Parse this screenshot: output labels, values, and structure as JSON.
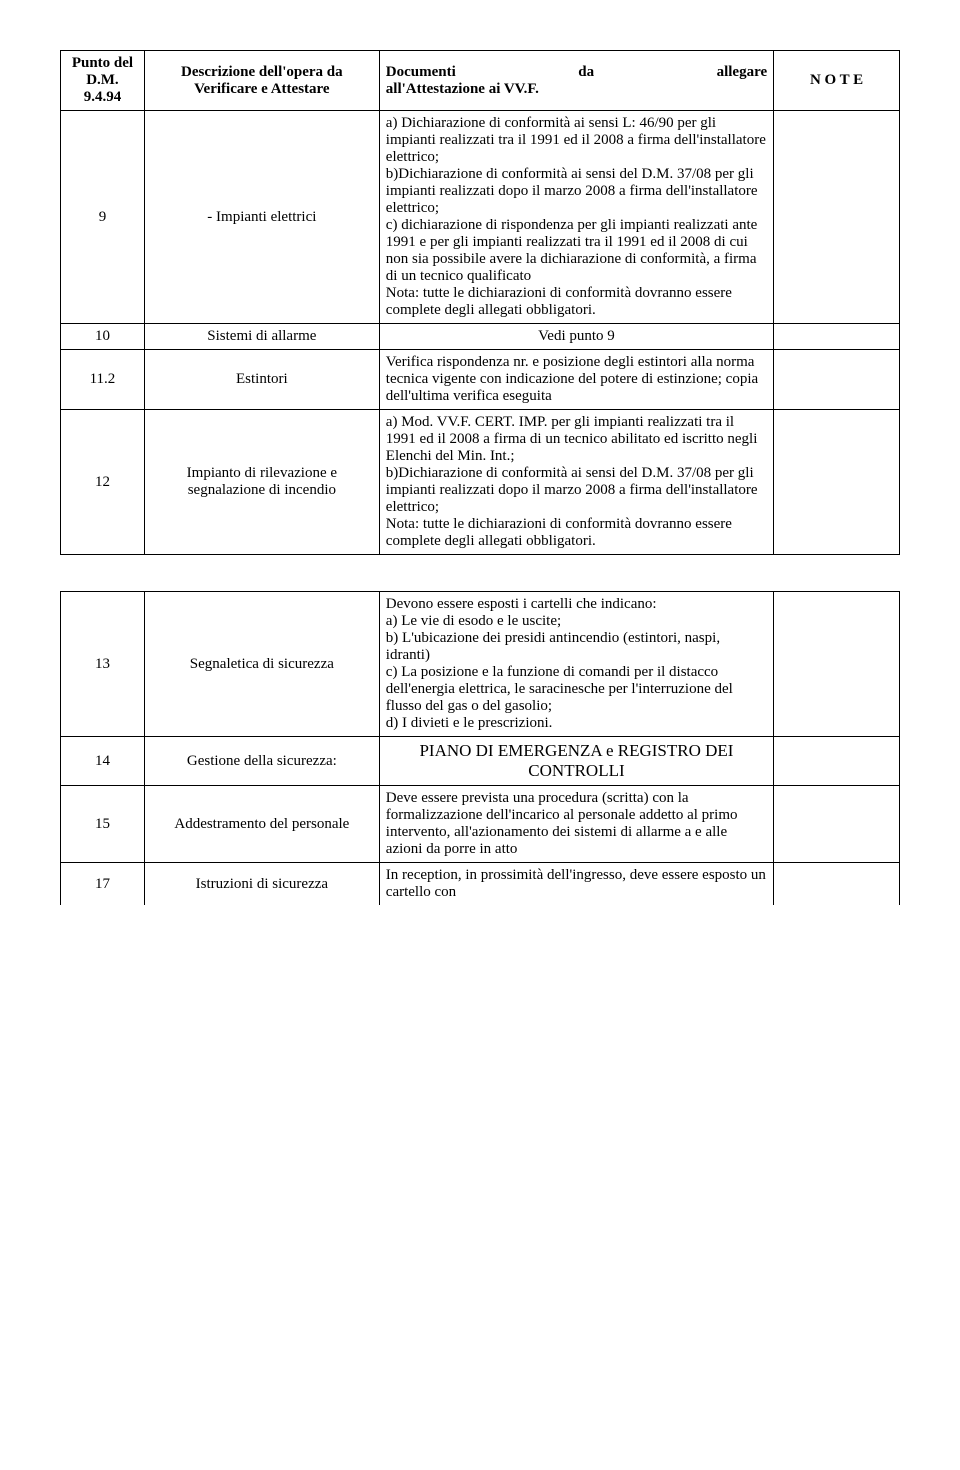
{
  "header": {
    "col1": "Punto del D.M. 9.4.94",
    "col2": "Descrizione dell'opera da Verificare e Attestare",
    "col3a": "Documenti",
    "col3b": "da",
    "col3c": "allegare",
    "col3d": "all'Attestazione ai VV.F.",
    "col4": "N O T E"
  },
  "rows": [
    {
      "num": "9",
      "desc": "- Impianti elettrici",
      "doc": "a) Dichiarazione di conformità ai sensi L: 46/90 per gli impianti realizzati tra il 1991 ed il 2008 a firma dell'installatore elettrico;\nb)Dichiarazione di conformità ai sensi del D.M. 37/08 per gli impianti realizzati dopo il marzo 2008 a firma dell'installatore elettrico;\nc) dichiarazione di rispondenza per gli impianti realizzati ante 1991 e per gli impianti realizzati tra il 1991 ed il 2008 di cui non sia possibile avere la dichiarazione di conformità, a firma di un tecnico qualificato\nNota: tutte le dichiarazioni di conformità dovranno essere complete degli allegati obbligatori."
    },
    {
      "num": "10",
      "desc": "Sistemi di allarme",
      "doc": "Vedi punto 9",
      "docCenter": true
    },
    {
      "num": "11.2",
      "desc": "Estintori",
      "doc": "Verifica rispondenza nr. e posizione degli estintori alla norma tecnica vigente con indicazione del potere di estinzione; copia dell'ultima verifica eseguita"
    },
    {
      "num": "12",
      "desc": "Impianto di rilevazione e segnalazione di incendio",
      "doc": "a) Mod. VV.F. CERT. IMP. per gli impianti realizzati tra il 1991 ed il 2008 a firma di un tecnico abilitato ed iscritto negli Elenchi del Min. Int.;\nb)Dichiarazione di conformità ai sensi del D.M. 37/08 per gli impianti realizzati dopo il marzo 2008 a firma dell'installatore elettrico;\nNota: tutte le dichiarazioni di conformità dovranno essere complete degli allegati obbligatori."
    }
  ],
  "rows2": [
    {
      "num": "13",
      "desc": "Segnaletica di sicurezza",
      "doc": "Devono essere esposti i cartelli che indicano:\na) Le vie di esodo e le uscite;\nb) L'ubicazione dei presidi antincendio (estintori, naspi, idranti)\nc) La posizione e la funzione di comandi per il distacco dell'energia elettrica, le saracinesche per l'interruzione del flusso del gas o del gasolio;\nd) I divieti e le prescrizioni."
    },
    {
      "num": "14",
      "desc": "Gestione della sicurezza:",
      "doc": "PIANO DI EMERGENZA e REGISTRO DEI CONTROLLI",
      "piano": true
    },
    {
      "num": "15",
      "desc": "Addestramento del personale",
      "doc": "Deve essere prevista una procedura (scritta) con la formalizzazione dell'incarico al personale addetto al primo intervento, all'azionamento dei sistemi di allarme a e alle azioni da porre in atto"
    },
    {
      "num": "17",
      "desc": "Istruzioni di sicurezza",
      "doc": "In reception, in prossimità dell'ingresso, deve essere esposto un cartello con"
    }
  ]
}
